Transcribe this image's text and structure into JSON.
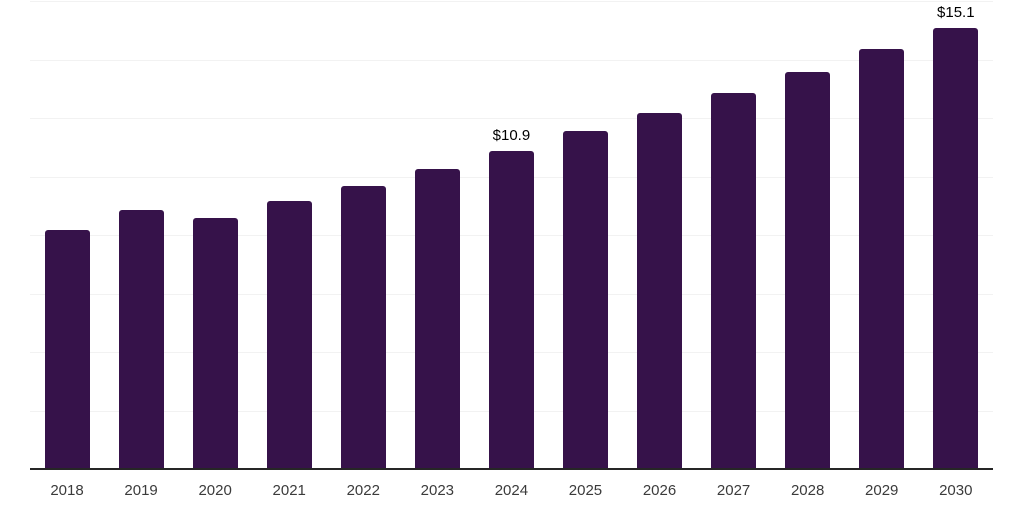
{
  "chart_data": {
    "type": "bar",
    "title": "",
    "xlabel": "",
    "ylabel": "",
    "categories": [
      "2018",
      "2019",
      "2020",
      "2021",
      "2022",
      "2023",
      "2024",
      "2025",
      "2026",
      "2027",
      "2028",
      "2029",
      "2030"
    ],
    "values": [
      8.2,
      8.9,
      8.6,
      9.2,
      9.7,
      10.3,
      10.9,
      11.6,
      12.2,
      12.9,
      13.6,
      14.4,
      15.1
    ],
    "data_labels": [
      {
        "category": "2024",
        "text": "$10.9"
      },
      {
        "category": "2030",
        "text": "$15.1"
      }
    ],
    "ylim": [
      0,
      16
    ],
    "grid_step": 2,
    "grid": true,
    "legend": false,
    "y_axis_ticks_visible": false,
    "colors": {
      "bar": "#36124a",
      "gridline": "#f2f2f2",
      "axis_line": "#262626",
      "tick_label": "#3b3b3b",
      "data_label": "#000000",
      "background": "#ffffff"
    }
  }
}
